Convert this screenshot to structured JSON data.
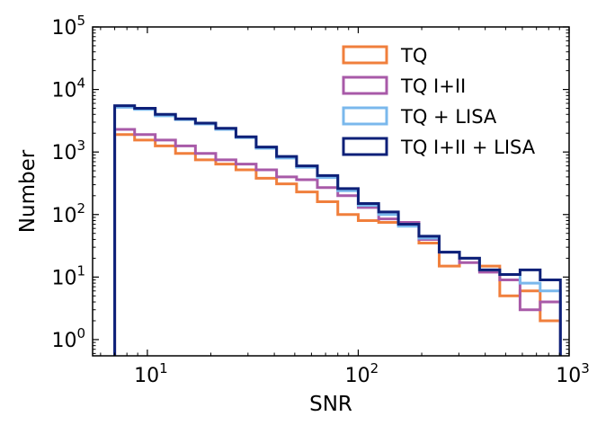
{
  "chart_data": {
    "type": "histogram",
    "title": "",
    "xlabel": "SNR",
    "ylabel": "Number",
    "xscale": "log",
    "yscale": "log",
    "xlim": [
      5.5,
      1000
    ],
    "ylim": [
      0.55,
      100000
    ],
    "legend_position": "top-right",
    "bin_edges": [
      7,
      8.7,
      10.9,
      13.6,
      16.9,
      21.1,
      26.3,
      32.8,
      41,
      51,
      64,
      80,
      100,
      125,
      155,
      194,
      242,
      302,
      376,
      469,
      585,
      729,
      909
    ],
    "x_ticks": [
      {
        "base": "10",
        "exp": "1",
        "value": 10
      },
      {
        "base": "10",
        "exp": "2",
        "value": 100
      },
      {
        "base": "10",
        "exp": "3",
        "value": 1000
      }
    ],
    "y_ticks": [
      {
        "base": "10",
        "exp": "0",
        "value": 1
      },
      {
        "base": "10",
        "exp": "1",
        "value": 10
      },
      {
        "base": "10",
        "exp": "2",
        "value": 100
      },
      {
        "base": "10",
        "exp": "3",
        "value": 1000
      },
      {
        "base": "10",
        "exp": "4",
        "value": 10000
      },
      {
        "base": "10",
        "exp": "5",
        "value": 100000
      }
    ],
    "series": [
      {
        "name": "TQ",
        "color": "#f07f3c",
        "values": [
          1900,
          1550,
          1250,
          950,
          750,
          640,
          520,
          380,
          310,
          230,
          160,
          100,
          80,
          75,
          70,
          35,
          15,
          20,
          15,
          5,
          6,
          2
        ]
      },
      {
        "name": "TQ I+II",
        "color": "#a85aa8",
        "values": [
          2300,
          1900,
          1550,
          1250,
          950,
          750,
          640,
          520,
          400,
          360,
          270,
          200,
          130,
          85,
          75,
          40,
          25,
          17,
          12,
          9,
          3,
          4
        ]
      },
      {
        "name": "TQ + LISA",
        "color": "#7ab8ec",
        "values": [
          5200,
          4800,
          3800,
          3300,
          2800,
          2300,
          1700,
          1150,
          800,
          570,
          390,
          240,
          140,
          100,
          65,
          42,
          25,
          20,
          13,
          11,
          8,
          6
        ]
      },
      {
        "name": "TQ I+II + LISA",
        "color": "#0e2078",
        "values": [
          5500,
          5000,
          4000,
          3400,
          2900,
          2400,
          1750,
          1200,
          850,
          600,
          420,
          260,
          150,
          110,
          70,
          45,
          25,
          20,
          13,
          11,
          13,
          9
        ]
      }
    ]
  }
}
